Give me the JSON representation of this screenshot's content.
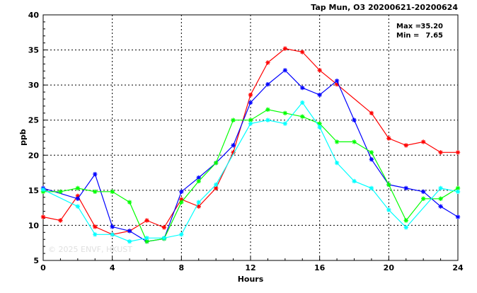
{
  "chart_data": {
    "type": "line",
    "title": "Tap Mun, O3 20200621-20200624",
    "xlabel": "Hours",
    "ylabel": "ppb",
    "xlim": [
      0,
      24
    ],
    "ylim": [
      5,
      40
    ],
    "x_ticks": [
      0,
      4,
      8,
      12,
      16,
      20,
      24
    ],
    "y_ticks": [
      5,
      10,
      15,
      20,
      25,
      30,
      35,
      40
    ],
    "grid": true,
    "marker": "asterisk",
    "stats": {
      "max_label": "Max =",
      "max_value": "35.20",
      "min_label": "Min =",
      "min_value": "7.65"
    },
    "watermark": "© 2025  ENVF, HKUST",
    "x": [
      0,
      1,
      2,
      3,
      4,
      5,
      6,
      7,
      8,
      9,
      10,
      11,
      12,
      13,
      14,
      15,
      16,
      17,
      18,
      19,
      20,
      21,
      22,
      23,
      24
    ],
    "series": [
      {
        "color": "#ff0000",
        "values": [
          11.2,
          10.7,
          14.2,
          9.8,
          8.7,
          9.2,
          10.7,
          9.7,
          13.7,
          12.7,
          15.3,
          20.4,
          28.6,
          33.2,
          35.2,
          34.7,
          32.1,
          30.1,
          null,
          26.0,
          22.4,
          21.4,
          21.9,
          20.4,
          20.4
        ]
      },
      {
        "color": "#0000ff",
        "values": [
          15.3,
          null,
          13.8,
          17.3,
          9.8,
          9.2,
          7.7,
          8.1,
          14.8,
          16.8,
          18.9,
          21.4,
          27.5,
          30.1,
          32.1,
          29.6,
          28.6,
          30.6,
          25.0,
          19.4,
          15.8,
          15.3,
          14.8,
          12.7,
          11.2
        ]
      },
      {
        "color": "#00ff00",
        "values": [
          14.8,
          14.8,
          15.3,
          14.8,
          14.8,
          13.3,
          7.7,
          8.1,
          13.3,
          16.3,
          18.9,
          25.0,
          25.0,
          26.5,
          26.0,
          25.5,
          24.5,
          21.9,
          21.9,
          20.4,
          15.8,
          10.7,
          13.8,
          13.8,
          15.3
        ]
      },
      {
        "color": "#00ffff",
        "values": [
          15.1,
          null,
          12.7,
          8.7,
          8.7,
          7.7,
          8.2,
          8.2,
          8.7,
          13.3,
          15.8,
          null,
          24.5,
          25.0,
          24.5,
          27.5,
          24.0,
          18.9,
          16.3,
          15.3,
          12.2,
          9.7,
          null,
          15.3,
          14.8
        ]
      }
    ]
  }
}
